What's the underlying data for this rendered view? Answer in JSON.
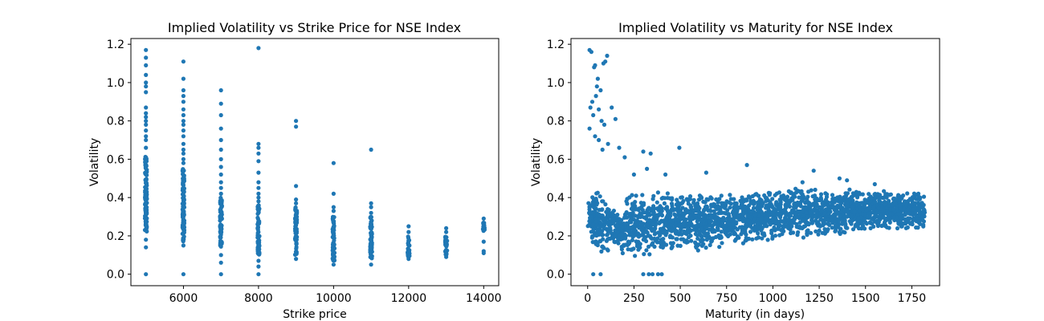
{
  "chart_data": [
    {
      "type": "scatter",
      "title": "Implied Volatility vs Strike Price for NSE Index",
      "xlabel": "Strike price",
      "ylabel": "Volatility",
      "xlim": [
        4600,
        14400
      ],
      "ylim": [
        -0.06,
        1.23
      ],
      "xticks": [
        6000,
        8000,
        10000,
        12000,
        14000
      ],
      "yticks": [
        0.0,
        0.2,
        0.4,
        0.6,
        0.8,
        1.0,
        1.2
      ],
      "xtick_labels": [
        "6000",
        "8000",
        "10000",
        "12000",
        "14000"
      ],
      "ytick_labels": [
        "0.0",
        "0.2",
        "0.4",
        "0.6",
        "0.8",
        "1.0",
        "1.2"
      ],
      "color": "#1f77b4",
      "grid": false,
      "groups": [
        {
          "x": 5000,
          "dense_min": 0.22,
          "dense_max": 0.62,
          "points": [
            0.0,
            0.14,
            0.18,
            0.66,
            0.7,
            0.72,
            0.75,
            0.78,
            0.8,
            0.82,
            0.84,
            0.87,
            0.95,
            0.98,
            1.0,
            1.04,
            1.09,
            1.13,
            1.17
          ]
        },
        {
          "x": 6000,
          "dense_min": 0.17,
          "dense_max": 0.55,
          "points": [
            0.0,
            0.15,
            0.58,
            0.6,
            0.63,
            0.65,
            0.68,
            0.72,
            0.75,
            0.78,
            0.8,
            0.83,
            0.86,
            0.9,
            0.93,
            0.96,
            1.02,
            1.11
          ]
        },
        {
          "x": 7000,
          "dense_min": 0.14,
          "dense_max": 0.4,
          "points": [
            0.0,
            0.06,
            0.1,
            0.42,
            0.45,
            0.48,
            0.52,
            0.56,
            0.6,
            0.65,
            0.7,
            0.76,
            0.83,
            0.89,
            0.96
          ]
        },
        {
          "x": 8000,
          "dense_min": 0.1,
          "dense_max": 0.36,
          "points": [
            0.0,
            0.04,
            0.07,
            0.38,
            0.4,
            0.42,
            0.45,
            0.48,
            0.53,
            0.59,
            0.63,
            0.66,
            0.68,
            1.18
          ]
        },
        {
          "x": 9000,
          "dense_min": 0.1,
          "dense_max": 0.35,
          "points": [
            0.08,
            0.37,
            0.39,
            0.46,
            0.77,
            0.8
          ]
        },
        {
          "x": 10000,
          "dense_min": 0.07,
          "dense_max": 0.31,
          "points": [
            0.05,
            0.33,
            0.35,
            0.42,
            0.58
          ]
        },
        {
          "x": 11000,
          "dense_min": 0.08,
          "dense_max": 0.3,
          "points": [
            0.05,
            0.32,
            0.35,
            0.37,
            0.65
          ]
        },
        {
          "x": 12000,
          "dense_min": 0.09,
          "dense_max": 0.2,
          "points": [
            0.08,
            0.22,
            0.25
          ]
        },
        {
          "x": 13000,
          "dense_min": 0.1,
          "dense_max": 0.2,
          "points": [
            0.09,
            0.22,
            0.24
          ]
        },
        {
          "x": 14000,
          "dense_min": 0.22,
          "dense_max": 0.27,
          "points": [
            0.11,
            0.12,
            0.17,
            0.29
          ]
        }
      ]
    },
    {
      "type": "scatter",
      "title": "Implied Volatility vs Maturity for NSE Index",
      "xlabel": "Maturity (in days)",
      "ylabel": "Volatility",
      "xlim": [
        -90,
        1900
      ],
      "ylim": [
        -0.06,
        1.23
      ],
      "xticks": [
        0,
        250,
        500,
        750,
        1000,
        1250,
        1500,
        1750
      ],
      "yticks": [
        0.0,
        0.2,
        0.4,
        0.6,
        0.8,
        1.0,
        1.2
      ],
      "xtick_labels": [
        "0",
        "250",
        "500",
        "750",
        "1000",
        "1250",
        "1500",
        "1750"
      ],
      "ytick_labels": [
        "0.0",
        "0.2",
        "0.4",
        "0.6",
        "0.8",
        "1.0",
        "1.2"
      ],
      "color": "#1f77b4",
      "grid": false,
      "bands": [
        {
          "x_from": 0,
          "x_to": 200,
          "y_low": [
            0.1,
            0.1
          ],
          "y_high": [
            0.5,
            0.3
          ]
        },
        {
          "x_from": 200,
          "x_to": 600,
          "y_low": [
            0.08,
            0.12
          ],
          "y_high": [
            0.42,
            0.45
          ]
        },
        {
          "x_from": 600,
          "x_to": 1000,
          "y_low": [
            0.12,
            0.17
          ],
          "y_high": [
            0.42,
            0.45
          ]
        },
        {
          "x_from": 1000,
          "x_to": 1400,
          "y_low": [
            0.17,
            0.2
          ],
          "y_high": [
            0.45,
            0.45
          ]
        },
        {
          "x_from": 1400,
          "x_to": 1820,
          "y_low": [
            0.22,
            0.23
          ],
          "y_high": [
            0.45,
            0.42
          ]
        }
      ],
      "points": [
        [
          10,
          1.17
        ],
        [
          20,
          1.16
        ],
        [
          35,
          1.08
        ],
        [
          40,
          1.09
        ],
        [
          50,
          0.98
        ],
        [
          55,
          1.02
        ],
        [
          70,
          0.96
        ],
        [
          85,
          1.1
        ],
        [
          95,
          1.11
        ],
        [
          105,
          1.14
        ],
        [
          15,
          0.87
        ],
        [
          25,
          0.9
        ],
        [
          30,
          0.83
        ],
        [
          45,
          0.93
        ],
        [
          60,
          0.86
        ],
        [
          75,
          0.8
        ],
        [
          90,
          0.78
        ],
        [
          130,
          0.87
        ],
        [
          150,
          0.81
        ],
        [
          10,
          0.76
        ],
        [
          40,
          0.72
        ],
        [
          60,
          0.7
        ],
        [
          80,
          0.65
        ],
        [
          110,
          0.68
        ],
        [
          170,
          0.66
        ],
        [
          200,
          0.61
        ],
        [
          300,
          0.64
        ],
        [
          340,
          0.63
        ],
        [
          495,
          0.66
        ],
        [
          860,
          0.57
        ],
        [
          1220,
          0.54
        ],
        [
          1360,
          0.5
        ],
        [
          1400,
          0.49
        ],
        [
          1160,
          0.48
        ],
        [
          1550,
          0.47
        ],
        [
          250,
          0.52
        ],
        [
          320,
          0.55
        ],
        [
          420,
          0.52
        ],
        [
          640,
          0.53
        ],
        [
          30,
          0.0
        ],
        [
          70,
          0.0
        ],
        [
          300,
          0.0
        ],
        [
          330,
          0.0
        ],
        [
          350,
          0.0
        ],
        [
          380,
          0.0
        ],
        [
          400,
          0.0
        ]
      ]
    }
  ]
}
